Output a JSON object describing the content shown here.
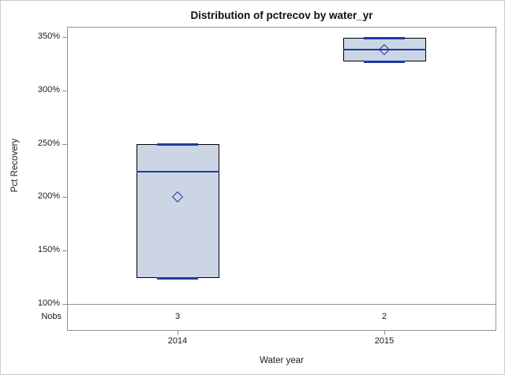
{
  "chart_data": {
    "type": "boxplot",
    "title": "Distribution of pctrecov by water_yr",
    "xlabel": "Water year",
    "ylabel": "Pct Recovery",
    "nobs_label": "Nobs",
    "categories": [
      "2014",
      "2015"
    ],
    "yticks": [
      100,
      150,
      200,
      250,
      300,
      350
    ],
    "ytick_suffix": "%",
    "ylim": [
      100,
      350
    ],
    "grid": false,
    "legend": "none",
    "series": [
      {
        "category": "2014",
        "nobs": "3",
        "min": 124,
        "q1": 124,
        "median": 224,
        "q3": 250,
        "max": 250,
        "mean": 200
      },
      {
        "category": "2015",
        "nobs": "2",
        "min": 327,
        "q1": 327,
        "median": 338,
        "q3": 349,
        "max": 349,
        "mean": 338
      }
    ],
    "colors": {
      "box_fill": "#ccd5e3",
      "box_border": "#000000",
      "median_line": "#1c3ba8",
      "whisker_cap": "#1c3ba8",
      "mean_marker": "#1c3ba8",
      "frame": "#8f9397",
      "text": "#1a1a1a",
      "background": "#ffffff"
    }
  }
}
